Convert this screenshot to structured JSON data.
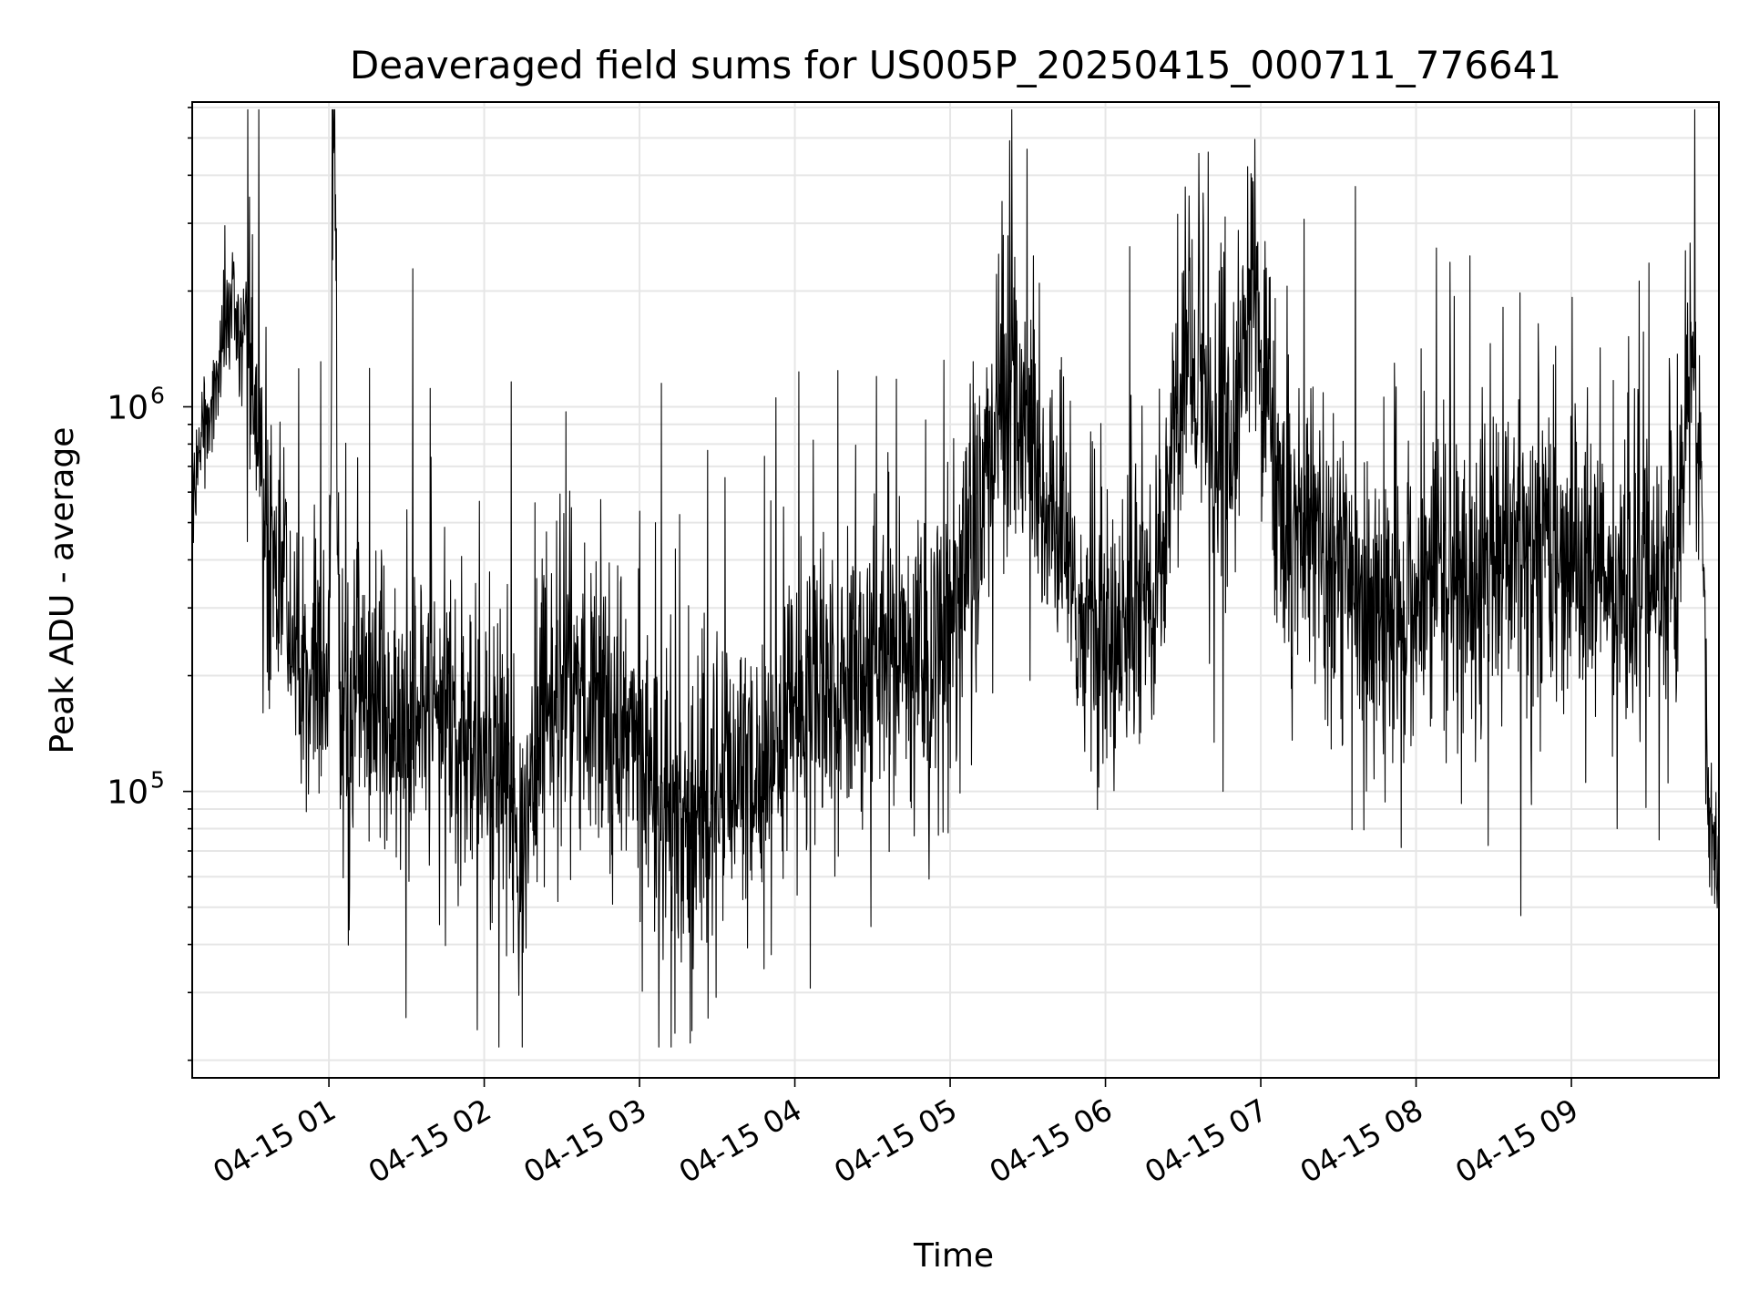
{
  "chart_data": {
    "type": "line",
    "title": "Deaveraged field sums for US005P_20250415_000711_776641",
    "xlabel": "Time",
    "ylabel": "Peak ADU - average",
    "x_scale": "time",
    "y_scale": "log",
    "grid": true,
    "legend": "none",
    "xlim": [
      "2025-04-15T00:07:11",
      "2025-04-15T09:57:00"
    ],
    "ylim": [
      18000,
      6200000
    ],
    "x_ticks": [
      {
        "value": "2025-04-15T01:00:00",
        "label": "04-15 01"
      },
      {
        "value": "2025-04-15T02:00:00",
        "label": "04-15 02"
      },
      {
        "value": "2025-04-15T03:00:00",
        "label": "04-15 03"
      },
      {
        "value": "2025-04-15T04:00:00",
        "label": "04-15 04"
      },
      {
        "value": "2025-04-15T05:00:00",
        "label": "04-15 05"
      },
      {
        "value": "2025-04-15T06:00:00",
        "label": "04-15 06"
      },
      {
        "value": "2025-04-15T07:00:00",
        "label": "04-15 07"
      },
      {
        "value": "2025-04-15T08:00:00",
        "label": "04-15 08"
      },
      {
        "value": "2025-04-15T09:00:00",
        "label": "04-15 09"
      }
    ],
    "y_major_ticks": [
      {
        "value": 100000,
        "base": "10",
        "exp": "5"
      },
      {
        "value": 1000000,
        "base": "10",
        "exp": "6"
      }
    ],
    "series": [
      {
        "color": "#000000",
        "points": [
          [
            "2025-04-15T00:07:11",
            620000
          ],
          [
            "2025-04-15T00:12:00",
            900000
          ],
          [
            "2025-04-15T00:16:00",
            1050000
          ],
          [
            "2025-04-15T00:20:00",
            1600000
          ],
          [
            "2025-04-15T00:23:00",
            2000000
          ],
          [
            "2025-04-15T00:26:00",
            1400000
          ],
          [
            "2025-04-15T00:28:00",
            1700000
          ],
          [
            "2025-04-15T00:31:00",
            900000
          ],
          [
            "2025-04-15T00:34:00",
            700000
          ],
          [
            "2025-04-15T00:37:00",
            450000
          ],
          [
            "2025-04-15T00:40:00",
            350000
          ],
          [
            "2025-04-15T00:43:00",
            420000
          ],
          [
            "2025-04-15T00:46:00",
            250000
          ],
          [
            "2025-04-15T00:50:00",
            180000
          ],
          [
            "2025-04-15T00:54:00",
            220000
          ],
          [
            "2025-04-15T00:58:00",
            190000
          ],
          [
            "2025-04-15T01:00:00",
            200000
          ],
          [
            "2025-04-15T01:02:00",
            5200000
          ],
          [
            "2025-04-15T01:04:00",
            180000
          ],
          [
            "2025-04-15T01:10:00",
            160000
          ],
          [
            "2025-04-15T01:20:00",
            170000
          ],
          [
            "2025-04-15T01:30:00",
            150000
          ],
          [
            "2025-04-15T01:40:00",
            160000
          ],
          [
            "2025-04-15T01:50:00",
            140000
          ],
          [
            "2025-04-15T02:00:00",
            130000
          ],
          [
            "2025-04-15T02:10:00",
            120000
          ],
          [
            "2025-04-15T02:15:00",
            60000
          ],
          [
            "2025-04-15T02:20:00",
            140000
          ],
          [
            "2025-04-15T02:30:00",
            160000
          ],
          [
            "2025-04-15T02:40:00",
            170000
          ],
          [
            "2025-04-15T02:50:00",
            160000
          ],
          [
            "2025-04-15T03:00:00",
            130000
          ],
          [
            "2025-04-15T03:10:00",
            90000
          ],
          [
            "2025-04-15T03:20:00",
            80000
          ],
          [
            "2025-04-15T03:30:00",
            100000
          ],
          [
            "2025-04-15T03:40:00",
            110000
          ],
          [
            "2025-04-15T03:50:00",
            120000
          ],
          [
            "2025-04-15T04:00:00",
            150000
          ],
          [
            "2025-04-15T04:10:00",
            170000
          ],
          [
            "2025-04-15T04:20:00",
            190000
          ],
          [
            "2025-04-15T04:30:00",
            200000
          ],
          [
            "2025-04-15T04:40:00",
            210000
          ],
          [
            "2025-04-15T04:50:00",
            230000
          ],
          [
            "2025-04-15T05:00:00",
            260000
          ],
          [
            "2025-04-15T05:10:00",
            450000
          ],
          [
            "2025-04-15T05:20:00",
            1200000
          ],
          [
            "2025-04-15T05:30:00",
            900000
          ],
          [
            "2025-04-15T05:40:00",
            500000
          ],
          [
            "2025-04-15T05:50:00",
            250000
          ],
          [
            "2025-04-15T06:00:00",
            280000
          ],
          [
            "2025-04-15T06:10:00",
            300000
          ],
          [
            "2025-04-15T06:20:00",
            350000
          ],
          [
            "2025-04-15T06:30:00",
            1300000
          ],
          [
            "2025-04-15T06:40:00",
            900000
          ],
          [
            "2025-04-15T06:50:00",
            700000
          ],
          [
            "2025-04-15T06:57:00",
            2500000
          ],
          [
            "2025-04-15T07:00:00",
            1400000
          ],
          [
            "2025-04-15T07:10:00",
            450000
          ],
          [
            "2025-04-15T07:20:00",
            500000
          ],
          [
            "2025-04-15T07:30:00",
            400000
          ],
          [
            "2025-04-15T07:40:00",
            300000
          ],
          [
            "2025-04-15T07:50:00",
            250000
          ],
          [
            "2025-04-15T08:00:00",
            300000
          ],
          [
            "2025-04-15T08:10:00",
            350000
          ],
          [
            "2025-04-15T08:20:00",
            320000
          ],
          [
            "2025-04-15T08:30:00",
            400000
          ],
          [
            "2025-04-15T08:40:00",
            380000
          ],
          [
            "2025-04-15T08:50:00",
            450000
          ],
          [
            "2025-04-15T09:00:00",
            400000
          ],
          [
            "2025-04-15T09:10:00",
            350000
          ],
          [
            "2025-04-15T09:20:00",
            330000
          ],
          [
            "2025-04-15T09:30:00",
            380000
          ],
          [
            "2025-04-15T09:40:00",
            450000
          ],
          [
            "2025-04-15T09:46:00",
            1300000
          ],
          [
            "2025-04-15T09:50:00",
            700000
          ],
          [
            "2025-04-15T09:53:00",
            90000
          ],
          [
            "2025-04-15T09:57:00",
            60000
          ]
        ]
      }
    ]
  }
}
